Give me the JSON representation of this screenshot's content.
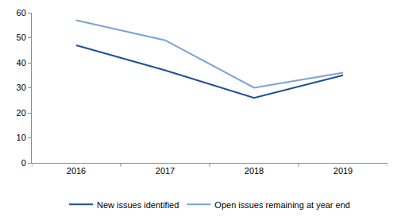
{
  "chart_data": {
    "type": "line",
    "categories": [
      "2016",
      "2017",
      "2018",
      "2019"
    ],
    "series": [
      {
        "name": "New issues identified",
        "color": "#1f4f96",
        "values": [
          47,
          37,
          26,
          35
        ]
      },
      {
        "name": "Open issues remaining at year end",
        "color": "#7aa3d6",
        "values": [
          57,
          49,
          30,
          36
        ]
      }
    ],
    "ylim": [
      0,
      60
    ],
    "yticks": [
      0,
      10,
      20,
      30,
      40,
      50,
      60
    ],
    "grid": false,
    "legend": "bottom"
  }
}
